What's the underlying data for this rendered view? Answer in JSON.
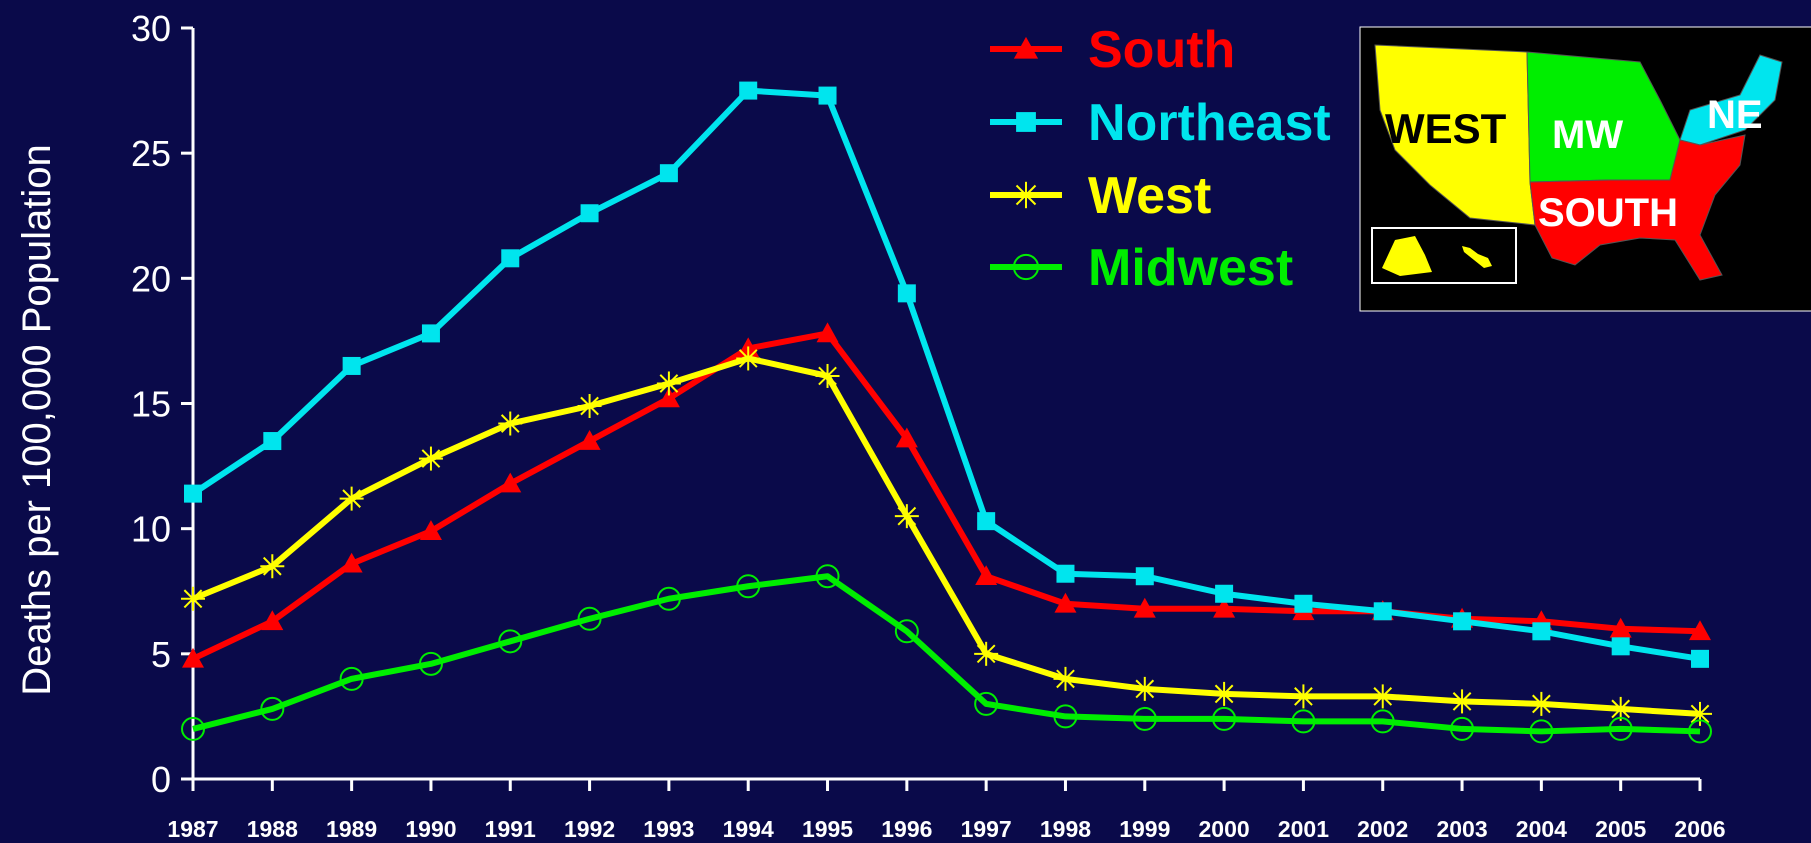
{
  "chart_data": {
    "type": "line",
    "title": "",
    "xlabel": "",
    "ylabel": "Deaths per 100,000 Population",
    "ylim": [
      0,
      30
    ],
    "yticks": [
      0,
      5,
      10,
      15,
      20,
      25,
      30
    ],
    "categories": [
      "1987",
      "1988",
      "1989",
      "1990",
      "1991",
      "1992",
      "1993",
      "1994",
      "1995",
      "1996",
      "1997",
      "1998",
      "1999",
      "2000",
      "2001",
      "2002",
      "2003",
      "2004",
      "2005",
      "2006"
    ],
    "legend_position": "top-center",
    "grid": false,
    "series": [
      {
        "name": "South",
        "color": "#ff0000",
        "marker": "triangle",
        "values": [
          4.8,
          6.3,
          8.6,
          9.9,
          11.8,
          13.5,
          15.2,
          17.2,
          17.8,
          13.6,
          8.1,
          7.0,
          6.8,
          6.8,
          6.7,
          6.7,
          6.4,
          6.3,
          6.0,
          5.9
        ]
      },
      {
        "name": "Northeast",
        "color": "#00e5ee",
        "marker": "square",
        "values": [
          11.4,
          13.5,
          16.5,
          17.8,
          20.8,
          22.6,
          24.2,
          27.5,
          27.3,
          19.4,
          10.3,
          8.2,
          8.1,
          7.4,
          7.0,
          6.7,
          6.3,
          5.9,
          5.3,
          4.8
        ]
      },
      {
        "name": "West",
        "color": "#ffff00",
        "marker": "star",
        "values": [
          7.2,
          8.5,
          11.2,
          12.8,
          14.2,
          14.9,
          15.8,
          16.8,
          16.1,
          10.5,
          5.0,
          4.0,
          3.6,
          3.4,
          3.3,
          3.3,
          3.1,
          3.0,
          2.8,
          2.6
        ]
      },
      {
        "name": "Midwest",
        "color": "#00ee00",
        "marker": "circle",
        "values": [
          2.0,
          2.8,
          4.0,
          4.6,
          5.5,
          6.4,
          7.2,
          7.7,
          8.1,
          5.9,
          3.0,
          2.5,
          2.4,
          2.4,
          2.3,
          2.3,
          2.0,
          1.9,
          2.0,
          1.9
        ]
      }
    ]
  },
  "map_inset": {
    "labels": {
      "west": "WEST",
      "midwest": "MW",
      "northeast": "NE",
      "south": "SOUTH"
    },
    "colors": {
      "west": "#ffff00",
      "midwest": "#00ee00",
      "northeast": "#00e5ee",
      "south": "#ff0000",
      "background": "#000000"
    }
  },
  "colors": {
    "background": "#0a0a4a",
    "axis": "#ffffff",
    "text": "#ffffff"
  }
}
